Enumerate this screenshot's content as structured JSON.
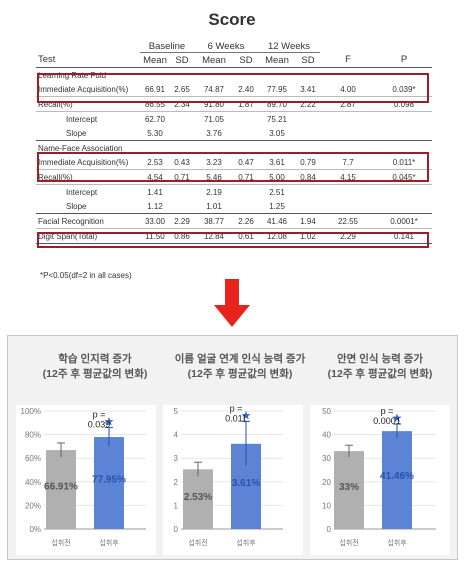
{
  "title": "Score",
  "table": {
    "headers": {
      "test": "Test",
      "baseline": "Baseline",
      "weeks6": "6 Weeks",
      "weeks12": "12 Weeks",
      "mean": "Mean",
      "sd": "SD",
      "f": "F",
      "p": "P"
    },
    "rows": [
      {
        "label": "Learning Rate Fuld",
        "type": "group"
      },
      {
        "label": "Immediate Acquisition(%)",
        "b_mean": "66.91",
        "b_sd": "2.65",
        "w6_mean": "74.87",
        "w6_sd": "2.40",
        "w12_mean": "77.95",
        "w12_sd": "3.41",
        "f": "4.00",
        "p": "0.039*"
      },
      {
        "label": "Recall(%)",
        "b_mean": "86.55",
        "b_sd": "2.34",
        "w6_mean": "91.80",
        "w6_sd": "1.87",
        "w12_mean": "89.70",
        "w12_sd": "2.22",
        "f": "2.87",
        "p": "0.098"
      },
      {
        "label": "Intercept",
        "b_mean": "62.70",
        "w6_mean": "71.05",
        "w12_mean": "75.21"
      },
      {
        "label": "Slope",
        "b_mean": "5.30",
        "w6_mean": "3.76",
        "w12_mean": "3.05"
      },
      {
        "label": "Name-Face Association",
        "type": "group"
      },
      {
        "label": "Immediate Acquisition(%)",
        "b_mean": "2.53",
        "b_sd": "0.43",
        "w6_mean": "3.23",
        "w6_sd": "0.47",
        "w12_mean": "3.61",
        "w12_sd": "0.79",
        "f": "7.7",
        "p": "0.011*"
      },
      {
        "label": "Recall(%)",
        "b_mean": "4.54",
        "b_sd": "0.71",
        "w6_mean": "5.46",
        "w6_sd": "0.71",
        "w12_mean": "5.00",
        "w12_sd": "0.84",
        "f": "4.15",
        "p": "0.045*"
      },
      {
        "label": "Intercept",
        "b_mean": "1.41",
        "w6_mean": "2.19",
        "w12_mean": "2.51"
      },
      {
        "label": "Slope",
        "b_mean": "1.12",
        "w6_mean": "1.01",
        "w12_mean": "1.25"
      },
      {
        "label": "Facial Recognition",
        "b_mean": "33.00",
        "b_sd": "2.29",
        "w6_mean": "38.77",
        "w6_sd": "2.26",
        "w12_mean": "41.46",
        "w12_sd": "1.94",
        "f": "22.55",
        "p": "0.0001*"
      },
      {
        "label": "Digit Span(Total)",
        "b_mean": "11.50",
        "b_sd": "0.86",
        "w6_mean": "12.84",
        "w6_sd": "0.61",
        "w12_mean": "12.08",
        "w12_sd": "1.02",
        "f": "2.29",
        "p": "0.141"
      }
    ],
    "footnote": "*P<0.05(df=2 in all cases)"
  },
  "colors": {
    "highlight": "#9c1e2a",
    "arrow": "#e8231c",
    "bar_before": "#b0b0b0",
    "bar_after": "#5b84d6",
    "star": "#3a66c8"
  },
  "panel": {
    "titles": [
      {
        "line1": "학습 인지력 증가",
        "line2": "(12주 후 평균값의 변화)"
      },
      {
        "line1": "이름 얼굴 연계 인식 능력 증가",
        "line2": "(12주 후 평균값의 변화)"
      },
      {
        "line1": "안면 인식 능력 증가",
        "line2": "(12주 후 평균값의 변화)"
      }
    ]
  },
  "chart_data": [
    {
      "type": "bar",
      "categories": [
        "섭취전",
        "섭취후"
      ],
      "values": [
        66.91,
        77.95
      ],
      "error": [
        6,
        8
      ],
      "value_labels": [
        "66.91%",
        "77.95%"
      ],
      "ylim": [
        0,
        100
      ],
      "yticks": [
        "0%",
        "20%",
        "40%",
        "60%",
        "80%",
        "100%"
      ],
      "ytick_values": [
        0,
        20,
        40,
        60,
        80,
        100
      ],
      "annotation": {
        "line1": "p =",
        "line2": "0.039"
      }
    },
    {
      "type": "bar",
      "categories": [
        "섭취전",
        "섭취후"
      ],
      "values": [
        2.53,
        3.61
      ],
      "error": [
        0.3,
        0.95
      ],
      "value_labels": [
        "2.53%",
        "3.61%"
      ],
      "ylim": [
        0,
        5
      ],
      "yticks": [
        "0",
        "1",
        "2",
        "3",
        "4",
        "5"
      ],
      "ytick_values": [
        0,
        1,
        2,
        3,
        4,
        5
      ],
      "annotation": {
        "line1": "p =",
        "line2": "0.011"
      }
    },
    {
      "type": "bar",
      "categories": [
        "섭취전",
        "섭취후"
      ],
      "values": [
        33,
        41.46
      ],
      "error": [
        2.5,
        3
      ],
      "value_labels": [
        "33%",
        "41.46%"
      ],
      "ylim": [
        0,
        50
      ],
      "yticks": [
        "0",
        "10",
        "20",
        "30",
        "40",
        "50"
      ],
      "ytick_values": [
        0,
        10,
        20,
        30,
        40,
        50
      ],
      "annotation": {
        "line1": "p =",
        "line2": "0.0001"
      }
    }
  ]
}
